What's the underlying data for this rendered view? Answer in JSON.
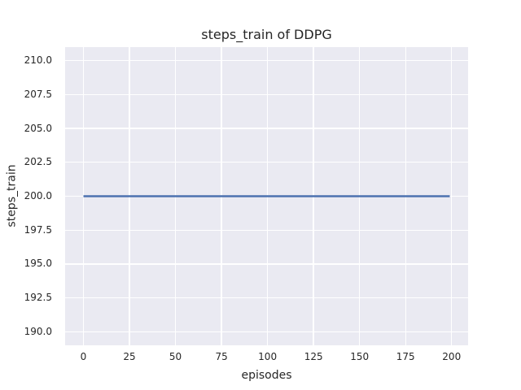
{
  "figure": {
    "background": "#ffffff",
    "plot_background": "#eaeaf2",
    "grid_color": "#ffffff",
    "text_color": "#262626"
  },
  "chart_data": {
    "type": "line",
    "title": "steps_train of DDPG",
    "xlabel": "episodes",
    "ylabel": "steps_train",
    "grid": true,
    "legend": false,
    "xlim": [
      -9.95,
      208.95
    ],
    "ylim": [
      189.0,
      211.0
    ],
    "x_ticks": [
      {
        "value": 0,
        "label": "0"
      },
      {
        "value": 25,
        "label": "25"
      },
      {
        "value": 50,
        "label": "50"
      },
      {
        "value": 75,
        "label": "75"
      },
      {
        "value": 100,
        "label": "100"
      },
      {
        "value": 125,
        "label": "125"
      },
      {
        "value": 150,
        "label": "150"
      },
      {
        "value": 175,
        "label": "175"
      },
      {
        "value": 200,
        "label": "200"
      }
    ],
    "y_ticks": [
      {
        "value": 190.0,
        "label": "190.0"
      },
      {
        "value": 192.5,
        "label": "192.5"
      },
      {
        "value": 195.0,
        "label": "195.0"
      },
      {
        "value": 197.5,
        "label": "197.5"
      },
      {
        "value": 200.0,
        "label": "200.0"
      },
      {
        "value": 202.5,
        "label": "202.5"
      },
      {
        "value": 205.0,
        "label": "205.0"
      },
      {
        "value": 207.5,
        "label": "207.5"
      },
      {
        "value": 210.0,
        "label": "210.0"
      }
    ],
    "series": [
      {
        "name": "steps_train",
        "color": "#4c72b0",
        "line_width": 2.4,
        "x": [
          0,
          199
        ],
        "y": [
          200,
          200
        ]
      }
    ]
  }
}
